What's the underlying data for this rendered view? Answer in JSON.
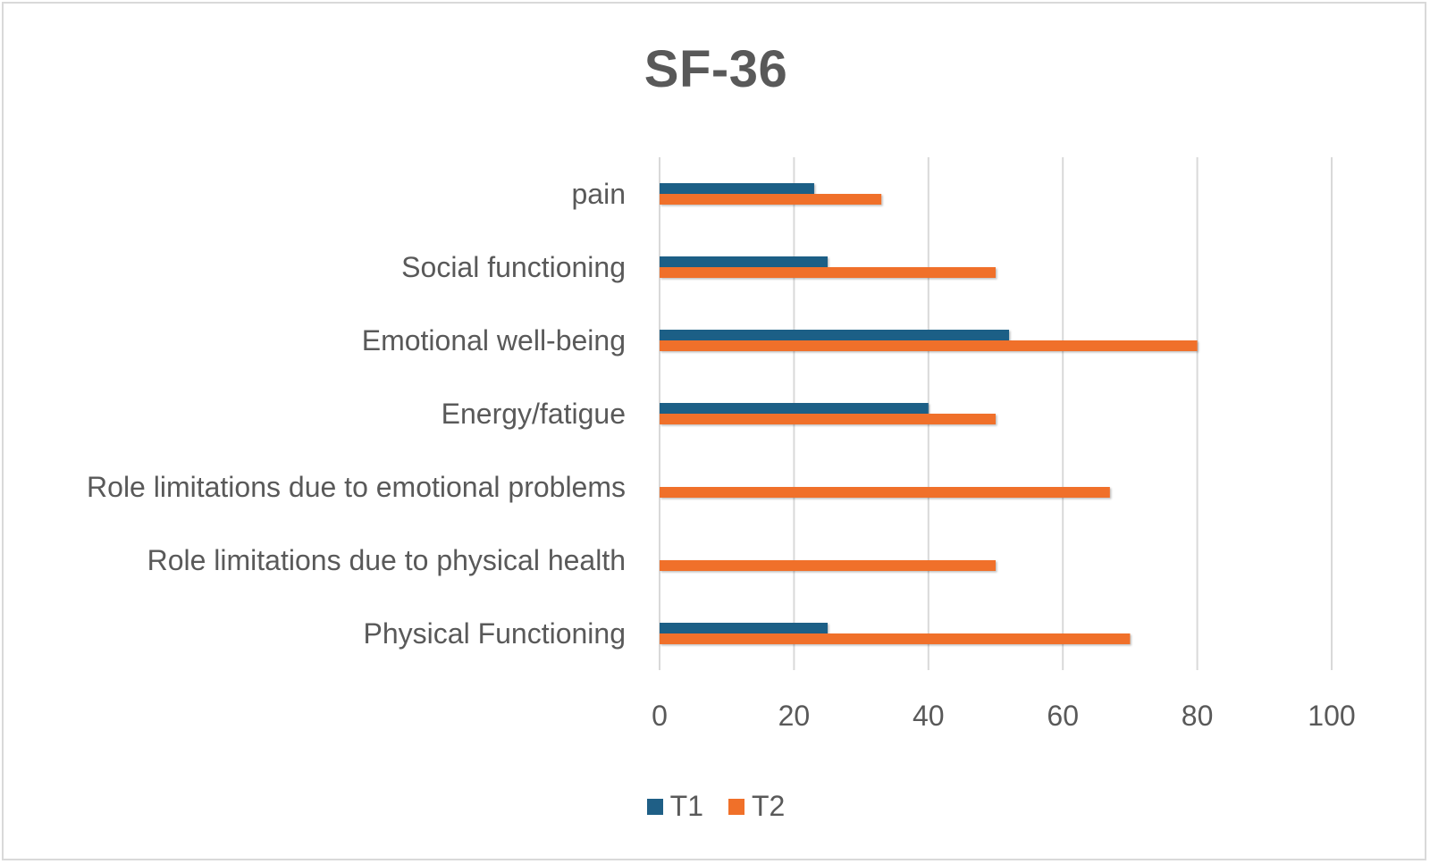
{
  "chart_data": {
    "type": "bar",
    "orientation": "horizontal",
    "title": "SF-36",
    "categories": [
      "Physical Functioning",
      "Role limitations due to physical health",
      "Role limitations due to emotional problems",
      "Energy/fatigue",
      "Emotional well-being",
      "Social functioning",
      "pain"
    ],
    "series": [
      {
        "name": "T1",
        "color": "#1f5f86",
        "values": [
          25,
          0,
          0,
          40,
          52,
          25,
          23
        ]
      },
      {
        "name": "T2",
        "color": "#f07029",
        "values": [
          70,
          50,
          67,
          50,
          80,
          50,
          33
        ]
      }
    ],
    "xlim": [
      0,
      100
    ],
    "xticks": [
      0,
      20,
      40,
      60,
      80,
      100
    ],
    "grid": true,
    "legend": "bottom"
  }
}
